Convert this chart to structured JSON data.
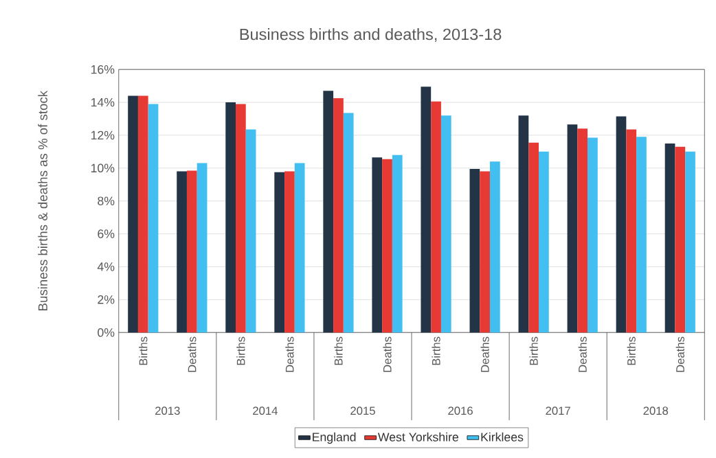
{
  "chart_data": {
    "type": "bar",
    "title": "Business births and deaths, 2013-18",
    "ylabel": "Business births & deaths as % of stock",
    "categories": [
      "Births",
      "Deaths",
      "Births",
      "Deaths",
      "Births",
      "Deaths",
      "Births",
      "Deaths",
      "Births",
      "Deaths",
      "Births",
      "Deaths"
    ],
    "annotations": [
      "2013",
      "2014",
      "2015",
      "2016",
      "2017",
      "2018"
    ],
    "series": [
      {
        "name": "England",
        "color": "#243447",
        "values": [
          14.4,
          9.8,
          14.0,
          9.75,
          14.7,
          10.65,
          14.95,
          9.95,
          13.2,
          12.65,
          13.15,
          11.5
        ]
      },
      {
        "name": "West Yorkshire",
        "color": "#e83a35",
        "values": [
          14.4,
          9.85,
          13.9,
          9.8,
          14.25,
          10.55,
          14.05,
          9.8,
          11.55,
          12.4,
          12.35,
          11.3
        ]
      },
      {
        "name": "Kirklees",
        "color": "#42bff0",
        "values": [
          13.9,
          10.3,
          12.35,
          10.3,
          13.35,
          10.8,
          13.2,
          10.4,
          11.0,
          11.85,
          11.9,
          11.0
        ]
      }
    ],
    "ylim": [
      0,
      16
    ],
    "yticks": [
      {
        "value": 0,
        "label": "0%"
      },
      {
        "value": 2,
        "label": "2%"
      },
      {
        "value": 4,
        "label": "4%"
      },
      {
        "value": 6,
        "label": "6%"
      },
      {
        "value": 8,
        "label": "8%"
      },
      {
        "value": 10,
        "label": "10%"
      },
      {
        "value": 12,
        "label": "12%"
      },
      {
        "value": 14,
        "label": "14%"
      },
      {
        "value": 16,
        "label": "16%"
      }
    ],
    "grid": "y",
    "legend": "bottom"
  }
}
